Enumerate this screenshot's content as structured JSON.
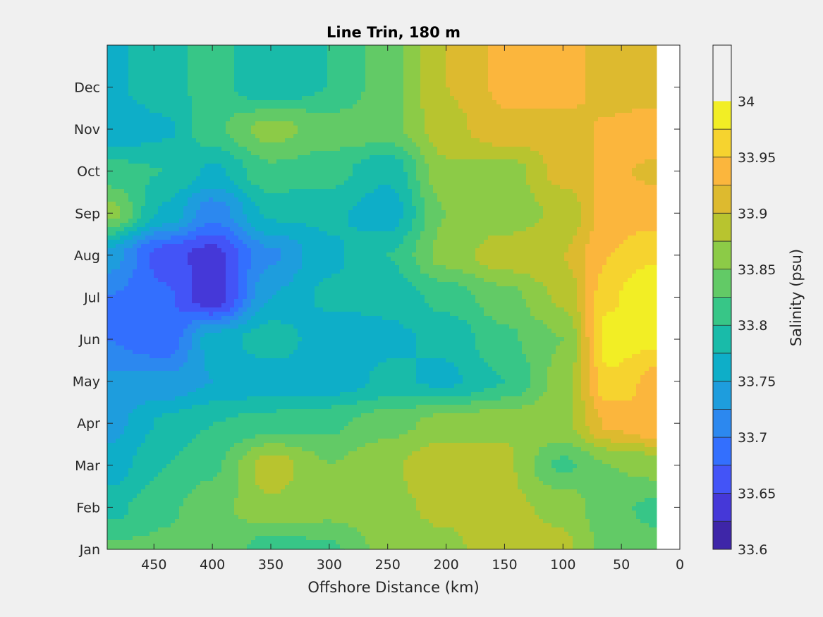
{
  "chart_data": {
    "type": "heatmap",
    "subtype": "filled-contour",
    "title": "Line Trin, 180 m",
    "xlabel": "Offshore Distance (km)",
    "ylabel": "",
    "x_reversed": true,
    "xlim": [
      0,
      490
    ],
    "x_ticks": [
      450,
      400,
      350,
      300,
      250,
      200,
      150,
      100,
      50,
      0
    ],
    "x_tick_labels": [
      "450",
      "400",
      "350",
      "300",
      "250",
      "200",
      "150",
      "100",
      "50",
      "0"
    ],
    "y_tick_labels": [
      "Jan",
      "Feb",
      "Mar",
      "Apr",
      "May",
      "Jun",
      "Jul",
      "Aug",
      "Sep",
      "Oct",
      "Nov",
      "Dec"
    ],
    "data_x_extent": [
      20,
      490
    ],
    "colorbar": {
      "label": "Salinity (psu)",
      "min": 33.6,
      "max": 34.05,
      "step": 0.025,
      "tick_values": [
        33.6,
        33.65,
        33.7,
        33.75,
        33.8,
        33.85,
        33.9,
        33.95,
        34.0
      ],
      "tick_labels": [
        "33.6",
        "33.65",
        "33.7",
        "33.75",
        "33.8",
        "33.85",
        "33.9",
        "33.95",
        "34"
      ],
      "colors": [
        "#3e26a8",
        "#4538d8",
        "#4354f7",
        "#336ffe",
        "#2c88ef",
        "#1e9ddd",
        "#0eaec8",
        "#19bba9",
        "#37c687",
        "#62ca66",
        "#8ccb47",
        "#b8c42f",
        "#ddba2f",
        "#fbb63d",
        "#f6d32f",
        "#f2ee25"
      ]
    },
    "x_km": [
      490,
      440,
      400,
      350,
      300,
      250,
      200,
      150,
      100,
      60,
      20
    ],
    "months": [
      "Jan",
      "Feb",
      "Mar",
      "Apr",
      "May",
      "Jun",
      "Jul",
      "Aug",
      "Sep",
      "Oct",
      "Nov",
      "Dec"
    ],
    "salinity": [
      [
        33.83,
        33.83,
        33.85,
        33.81,
        33.82,
        33.86,
        33.87,
        33.89,
        33.88,
        33.84,
        33.83
      ],
      [
        33.79,
        33.82,
        33.84,
        33.87,
        33.86,
        33.87,
        33.88,
        33.88,
        33.87,
        33.83,
        33.82
      ],
      [
        33.76,
        33.8,
        33.82,
        33.89,
        33.85,
        33.87,
        33.9,
        33.88,
        33.82,
        33.85,
        33.86
      ],
      [
        33.74,
        33.78,
        33.8,
        33.81,
        33.82,
        33.84,
        33.86,
        33.87,
        33.87,
        33.93,
        33.95
      ],
      [
        33.73,
        33.73,
        33.75,
        33.76,
        33.76,
        33.78,
        33.77,
        33.8,
        33.86,
        33.97,
        33.94
      ],
      [
        33.7,
        33.68,
        33.76,
        33.79,
        33.76,
        33.77,
        33.78,
        33.82,
        33.85,
        33.99,
        33.98
      ],
      [
        33.7,
        33.68,
        33.63,
        33.75,
        33.78,
        33.78,
        33.81,
        33.84,
        33.88,
        33.97,
        34.02
      ],
      [
        33.74,
        33.66,
        33.64,
        33.72,
        33.77,
        33.8,
        33.86,
        33.89,
        33.9,
        33.95,
        33.97
      ],
      [
        33.86,
        33.77,
        33.71,
        33.78,
        33.78,
        33.76,
        33.85,
        33.86,
        33.88,
        33.94,
        33.94
      ],
      [
        33.81,
        33.8,
        33.77,
        33.82,
        33.81,
        33.78,
        33.87,
        33.86,
        33.91,
        33.93,
        33.92
      ],
      [
        33.75,
        33.77,
        33.82,
        33.86,
        33.84,
        33.84,
        33.89,
        33.92,
        33.91,
        33.93,
        33.95
      ],
      [
        33.77,
        33.79,
        33.81,
        33.78,
        33.8,
        33.84,
        33.9,
        33.93,
        33.94,
        33.91,
        33.9
      ]
    ]
  }
}
